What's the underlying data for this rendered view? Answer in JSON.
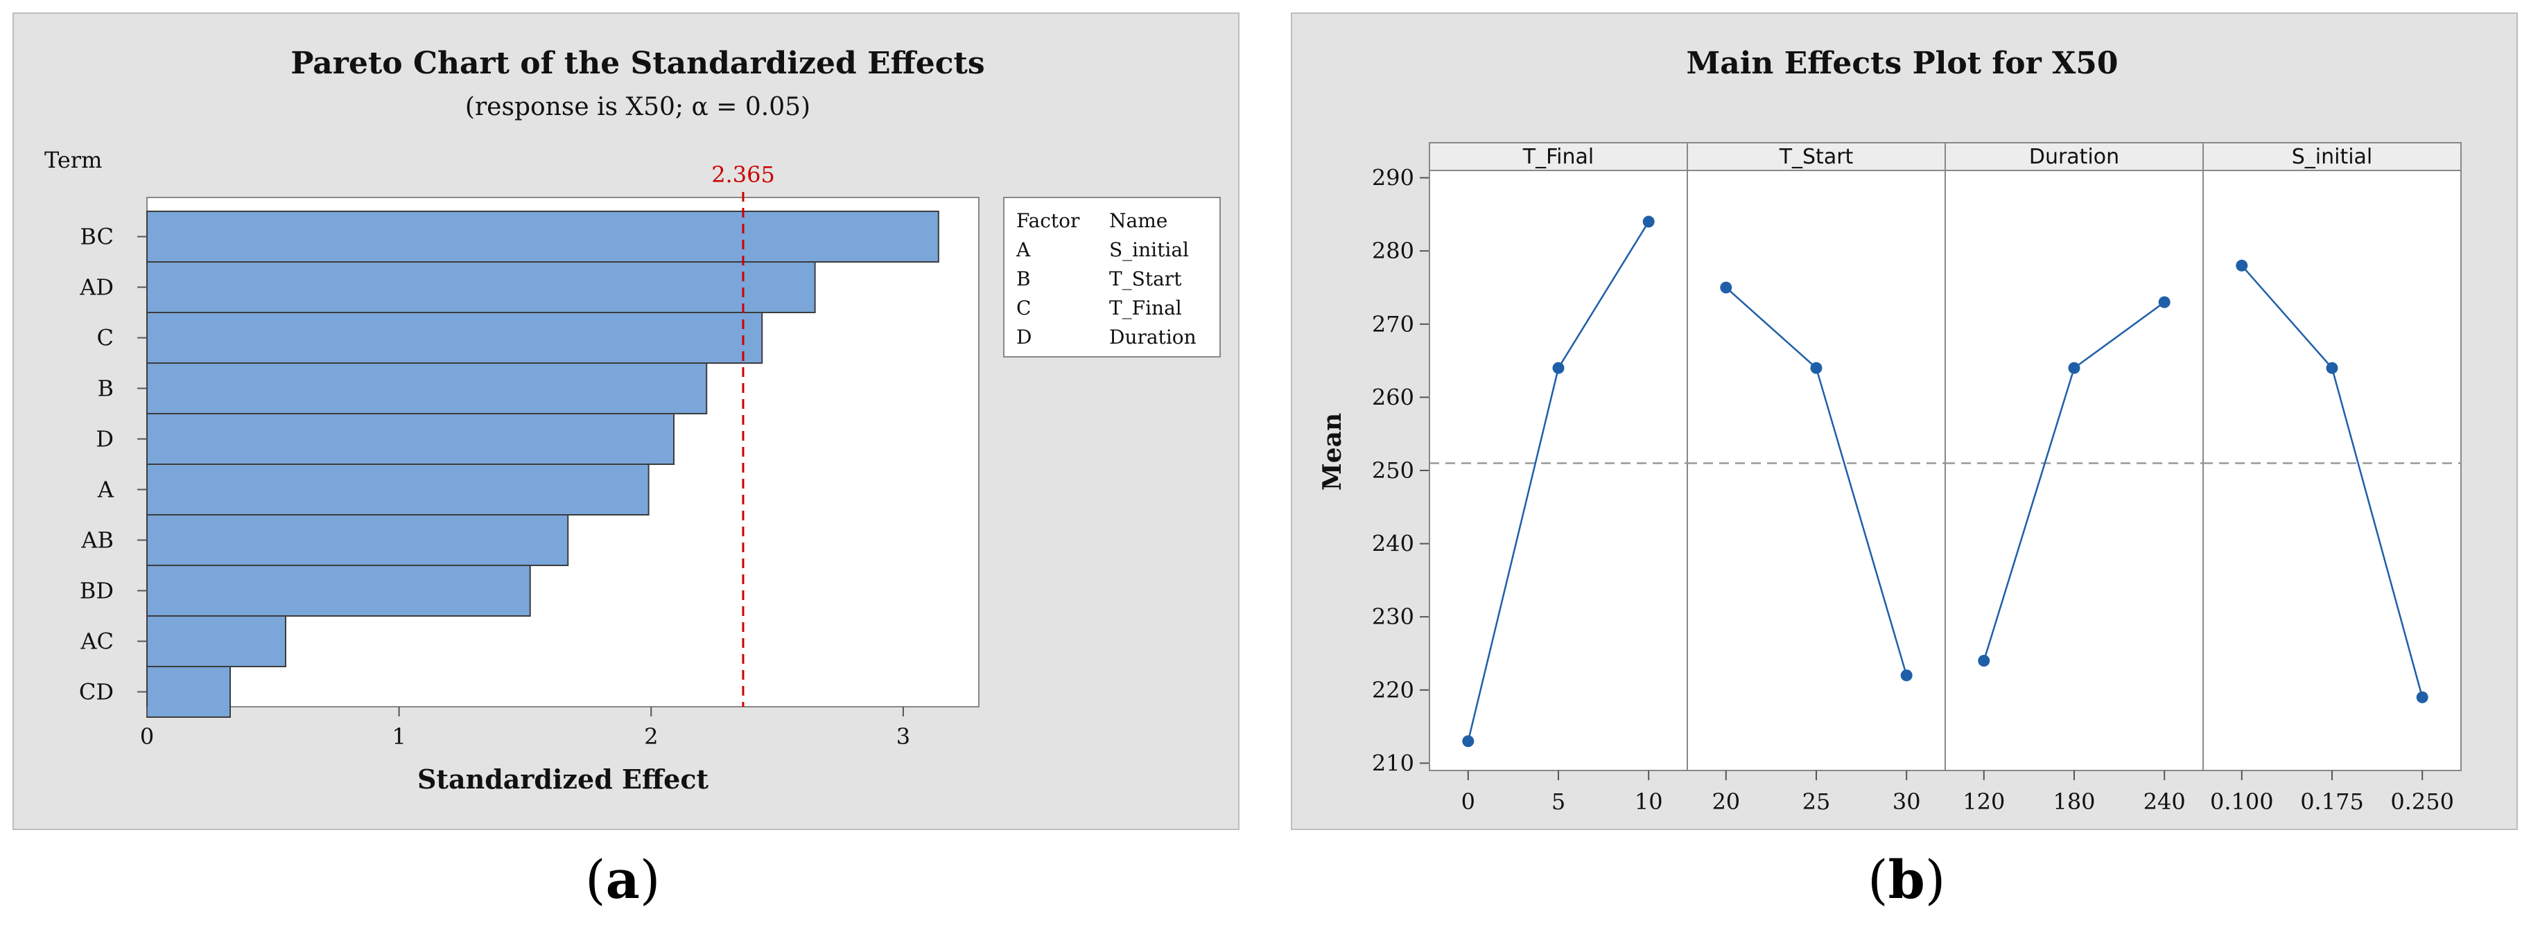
{
  "chart_data": [
    {
      "type": "bar",
      "orientation": "horizontal",
      "title": "Pareto Chart of the Standardized Effects",
      "subtitle": "(response is X50; α = 0.05)",
      "ylabel": "Term",
      "xlabel": "Standardized Effect",
      "categories": [
        "BC",
        "AD",
        "C",
        "B",
        "D",
        "A",
        "AB",
        "BD",
        "AC",
        "CD"
      ],
      "values": [
        3.14,
        2.65,
        2.44,
        2.22,
        2.09,
        1.99,
        1.67,
        1.52,
        0.55,
        0.33
      ],
      "xlim": [
        0,
        3.3
      ],
      "xticks": [
        "0",
        "1",
        "2",
        "3"
      ],
      "reference_line": {
        "value": 2.365,
        "label": "2.365",
        "color": "#cc0000"
      },
      "bar_color": "#7aa6da",
      "legend": {
        "placement": "right",
        "header": [
          "Factor",
          "Name"
        ],
        "rows": [
          [
            "A",
            "S_initial"
          ],
          [
            "B",
            "T_Start"
          ],
          [
            "C",
            "T_Final"
          ],
          [
            "D",
            "Duration"
          ]
        ]
      }
    },
    {
      "type": "line",
      "title": "Main Effects Plot for X50",
      "ylabel": "Mean",
      "ylim": [
        209,
        291
      ],
      "yticks": [
        "210",
        "220",
        "230",
        "240",
        "250",
        "260",
        "270",
        "280",
        "290"
      ],
      "reference_mean": 251,
      "line_color": "#1f5fa8",
      "panels": [
        {
          "name": "T_Final",
          "x": [
            "0",
            "5",
            "10"
          ],
          "y": [
            213,
            264,
            284
          ]
        },
        {
          "name": "T_Start",
          "x": [
            "20",
            "25",
            "30"
          ],
          "y": [
            275,
            264,
            222
          ]
        },
        {
          "name": "Duration",
          "x": [
            "120",
            "180",
            "240"
          ],
          "y": [
            224,
            264,
            273
          ]
        },
        {
          "name": "S_initial",
          "x": [
            "0.100",
            "0.175",
            "0.250"
          ],
          "y": [
            278,
            264,
            219
          ]
        }
      ]
    }
  ],
  "captions": [
    {
      "open": "(",
      "letter": "a",
      "close": ")"
    },
    {
      "open": "(",
      "letter": "b",
      "close": ")"
    }
  ]
}
